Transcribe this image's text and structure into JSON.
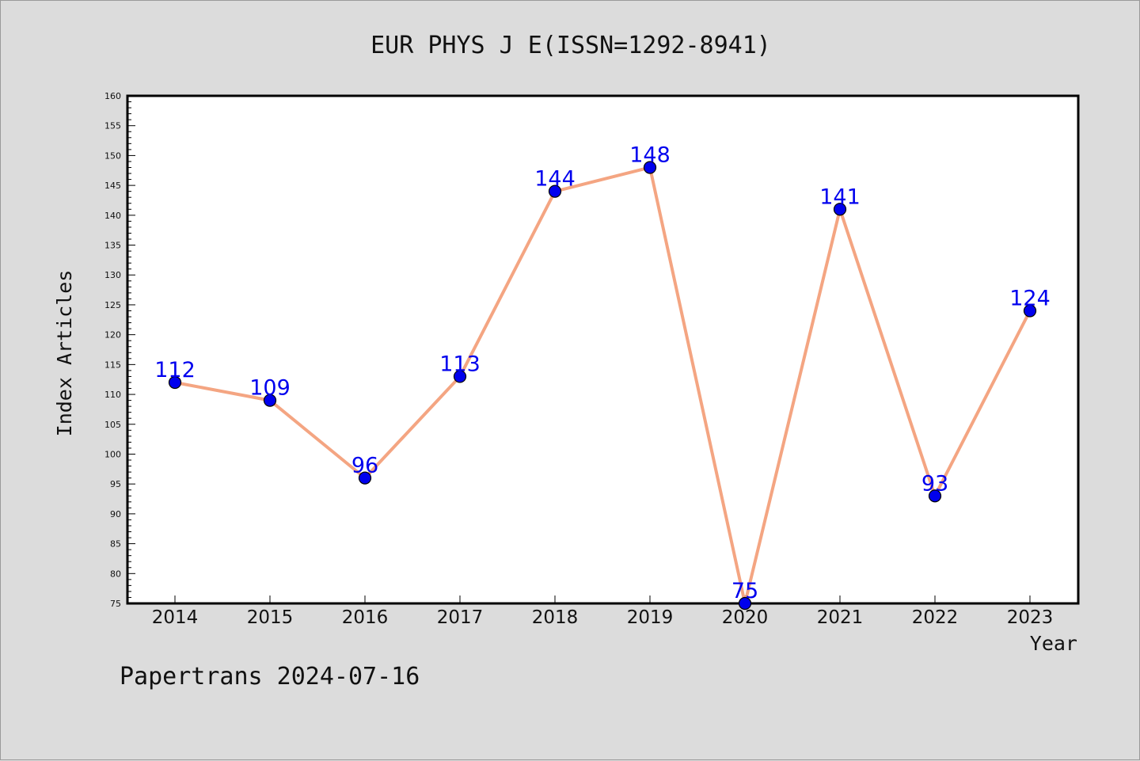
{
  "chart_data": {
    "type": "line",
    "title": "EUR PHYS J E(ISSN=1292-8941)",
    "xlabel": "Year",
    "ylabel": "Index Articles",
    "footer": "Papertrans 2024-07-16",
    "categories": [
      "2014",
      "2015",
      "2016",
      "2017",
      "2018",
      "2019",
      "2020",
      "2021",
      "2022",
      "2023"
    ],
    "series": [
      {
        "values": [
          112,
          109,
          96,
          113,
          144,
          148,
          75,
          141,
          93,
          124
        ]
      }
    ],
    "ylim": [
      75,
      160
    ],
    "ytick_step": 5,
    "grid": false,
    "legend": "none",
    "colors": {
      "background": "#dcdcdc",
      "plot_background": "#ffffff",
      "line": "#f4a582",
      "marker": "#0000ee",
      "data_label": "#0000ee"
    }
  }
}
